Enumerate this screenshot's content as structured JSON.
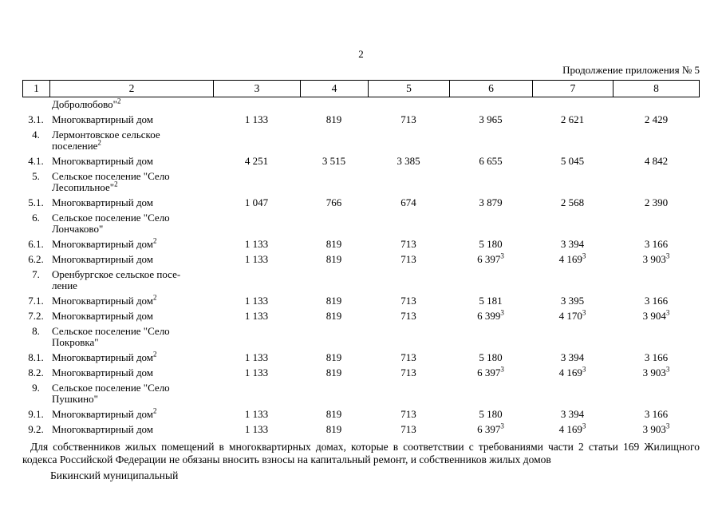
{
  "page": {
    "number": "2",
    "continuation_label": "Продолжение приложения № 5"
  },
  "table": {
    "header": [
      "1",
      "2",
      "3",
      "4",
      "5",
      "6",
      "7",
      "8"
    ],
    "rows": [
      {
        "num": "",
        "name": "Добролюбово\"^2",
        "values": [
          "",
          "",
          "",
          "",
          "",
          ""
        ]
      },
      {
        "num": "3.1.",
        "name": "Многоквартирный дом",
        "values": [
          "1 133",
          "819",
          "713",
          "3 965",
          "2 621",
          "2 429"
        ]
      },
      {
        "num": "4.",
        "name": "Лермонтовское сельское\nпоселение^2",
        "values": [
          "",
          "",
          "",
          "",
          "",
          ""
        ]
      },
      {
        "num": "4.1.",
        "name": "Многоквартирный дом",
        "values": [
          "4 251",
          "3 515",
          "3 385",
          "6 655",
          "5 045",
          "4 842"
        ]
      },
      {
        "num": "5.",
        "name": "Сельское поселение \"Село\nЛесопильное\"^2",
        "values": [
          "",
          "",
          "",
          "",
          "",
          ""
        ]
      },
      {
        "num": "5.1.",
        "name": "Многоквартирный дом",
        "values": [
          "1 047",
          "766",
          "674",
          "3 879",
          "2 568",
          "2 390"
        ]
      },
      {
        "num": "6.",
        "name": "Сельское поселение \"Село\nЛончаково\"",
        "values": [
          "",
          "",
          "",
          "",
          "",
          ""
        ]
      },
      {
        "num": "6.1.",
        "name": "Многоквартирный дом^2",
        "values": [
          "1 133",
          "819",
          "713",
          "5 180",
          "3 394",
          "3 166"
        ]
      },
      {
        "num": "6.2.",
        "name": "Многоквартирный дом",
        "values": [
          "1 133",
          "819",
          "713",
          "6 397^3",
          "4 169^3",
          "3 903^3"
        ]
      },
      {
        "num": "7.",
        "name": "Оренбургское сельское посе-\nление",
        "values": [
          "",
          "",
          "",
          "",
          "",
          ""
        ]
      },
      {
        "num": "7.1.",
        "name": "Многоквартирный дом^2",
        "values": [
          "1 133",
          "819",
          "713",
          "5 181",
          "3 395",
          "3 166"
        ]
      },
      {
        "num": "7.2.",
        "name": "Многоквартирный дом",
        "values": [
          "1 133",
          "819",
          "713",
          "6 399^3",
          "4 170^3",
          "3 904^3"
        ]
      },
      {
        "num": "8.",
        "name": "Сельское поселение \"Село\nПокровка\"",
        "values": [
          "",
          "",
          "",
          "",
          "",
          ""
        ]
      },
      {
        "num": "8.1.",
        "name": "Многоквартирный дом^2",
        "values": [
          "1 133",
          "819",
          "713",
          "5 180",
          "3 394",
          "3 166"
        ]
      },
      {
        "num": "8.2.",
        "name": "Многоквартирный дом",
        "values": [
          "1 133",
          "819",
          "713",
          "6 397^3",
          "4 169^3",
          "3 903^3"
        ]
      },
      {
        "num": "9.",
        "name": "Сельское поселение \"Село\nПушкино\"",
        "values": [
          "",
          "",
          "",
          "",
          "",
          ""
        ]
      },
      {
        "num": "9.1.",
        "name": "Многоквартирный дом^2",
        "values": [
          "1 133",
          "819",
          "713",
          "5 180",
          "3 394",
          "3 166"
        ]
      },
      {
        "num": "9.2.",
        "name": "Многоквартирный дом",
        "values": [
          "1 133",
          "819",
          "713",
          "6 397^3",
          "4 169^3",
          "3 903^3"
        ]
      }
    ]
  },
  "footnote": "Для собственников жилых помещений в многоквартирных домах, которые в соответствии с требованиями части 2 статьи 169 Жилищного кодекса Российской Федерации не обязаны вносить взносы на капитальный ремонт, и собственников жилых домов",
  "footer": "Бикинский муниципальный"
}
